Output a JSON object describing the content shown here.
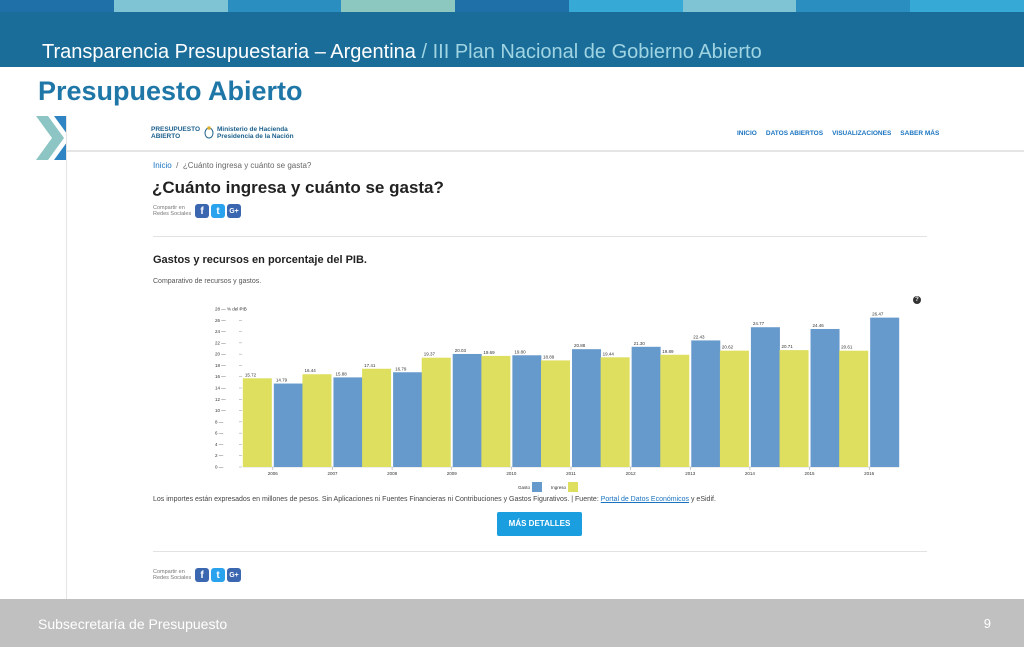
{
  "slide": {
    "header_main": "Transparencia Presupuestaria – Argentina",
    "header_sep": " / ",
    "header_sub": "III Plan Nacional de Gobierno Abierto",
    "title": "Presupuesto Abierto",
    "footer": "Subsecretaría de Presupuesto",
    "page_number": "9",
    "stripe_colors": [
      "#1f6fa8",
      "#7fc4d4",
      "#2a8fc0",
      "#8cc8c0",
      "#1f6fa8",
      "#36a9d6",
      "#7fc4d4",
      "#2a8fc0",
      "#36a9d6"
    ]
  },
  "site": {
    "logo_line1": "PRESUPUESTO",
    "logo_line2": "ABIERTO",
    "ministry_line1": "Ministerio de Hacienda",
    "ministry_line2": "Presidencia de la Nación",
    "nav": [
      "INICIO",
      "DATOS ABIERTOS",
      "VISUALIZACIONES",
      "SABER MÁS"
    ],
    "breadcrumb_home": "Inicio",
    "breadcrumb_sep": "/",
    "breadcrumb_current": "¿Cuánto ingresa y cuánto se gasta?",
    "heading": "¿Cuánto ingresa y cuánto se gasta?",
    "share_line1": "Compartir en",
    "share_line2": "Redes Sociales",
    "share_icons": [
      "facebook-icon",
      "twitter-icon",
      "google-plus-icon"
    ],
    "share_glyphs": {
      "facebook": "f",
      "twitter": "t",
      "google": "G+"
    },
    "help_glyph": "?",
    "note_text": "Los importes están expresados en millones de pesos. Sin Aplicaciones ni Fuentes Financieras ni Contribuciones y Gastos Figurativos. | Fuente: ",
    "note_link": "Portal de Datos Económicos",
    "note_end": " y eSidif.",
    "details_button": "MÁS DETALLES"
  },
  "chart_data": {
    "type": "bar",
    "title": "Gastos y recursos en porcentaje del PIB.",
    "subtitle": "Comparativo de recursos y gastos.",
    "ylabel": "% del PIB",
    "ylim": [
      0,
      28
    ],
    "yticks": [
      0,
      2,
      4,
      6,
      8,
      10,
      12,
      14,
      16,
      18,
      20,
      22,
      24,
      26,
      28
    ],
    "categories": [
      "2006",
      "2007",
      "2008",
      "2009",
      "2010",
      "2011",
      "2012",
      "2013",
      "2014",
      "2015",
      "2016"
    ],
    "series": [
      {
        "name": "Gasto",
        "color": "#6699cc",
        "values": [
          14.79,
          15.88,
          16.79,
          20.03,
          19.8,
          20.88,
          21.3,
          22.43,
          24.77,
          24.46,
          26.47
        ]
      },
      {
        "name": "Ingreso",
        "color": "#dede5f",
        "values": [
          15.72,
          16.44,
          17.41,
          19.37,
          19.69,
          18.89,
          19.44,
          19.89,
          20.62,
          20.71,
          20.61
        ]
      }
    ],
    "grid": false,
    "legend_position": "bottom-center"
  }
}
